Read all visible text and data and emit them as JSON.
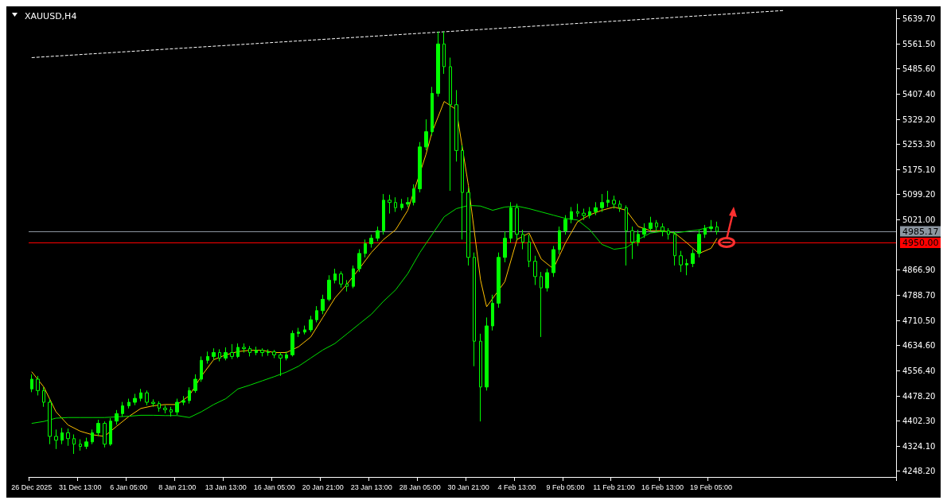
{
  "chart_data": {
    "type": "candlestick",
    "title": "XAUUSD,H4",
    "color": "#00ff00",
    "categories": [
      "26 Dec 2025",
      null,
      null,
      null,
      null,
      null,
      null,
      null,
      "31 Dec 13:00",
      null,
      null,
      null,
      null,
      null,
      null,
      null,
      "6 Jan 05:00",
      null,
      null,
      null,
      null,
      null,
      null,
      null,
      "8 Jan 21:00",
      null,
      null,
      null,
      null,
      null,
      null,
      null,
      "13 Jan 13:00",
      null,
      null,
      null,
      null,
      null,
      null,
      null,
      "16 Jan 05:00",
      null,
      null,
      null,
      null,
      null,
      null,
      null,
      "20 Jan 21:00",
      null,
      null,
      null,
      null,
      null,
      null,
      null,
      "23 Jan 13:00",
      null,
      null,
      null,
      null,
      null,
      null,
      null,
      "28 Jan 05:00",
      null,
      null,
      null,
      null,
      null,
      null,
      null,
      "30 Jan 21:00",
      null,
      null,
      null,
      null,
      null,
      null,
      null,
      "4 Feb 13:00",
      null,
      null,
      null,
      null,
      null,
      null,
      null,
      "9 Feb 05:00",
      null,
      null,
      null,
      null,
      null,
      null,
      null,
      "11 Feb 21:00",
      null,
      null,
      null,
      null,
      null,
      null,
      null,
      "16 Feb 13:00",
      null,
      null,
      null,
      null,
      null,
      null,
      null,
      "19 Feb 05:00",
      null,
      null,
      null,
      null,
      null,
      null,
      null,
      null,
      null,
      null,
      null,
      null,
      null,
      null,
      null,
      null,
      null,
      null,
      null,
      null,
      null,
      null,
      null,
      null,
      null,
      null,
      null,
      null,
      null,
      null
    ],
    "ohlc": [
      [
        4500,
        4545,
        4490,
        4530
      ],
      [
        4530,
        4540,
        4480,
        4495
      ],
      [
        4495,
        4505,
        4445,
        4459
      ],
      [
        4459,
        4470,
        4330,
        4354
      ],
      [
        4354,
        4375,
        4315,
        4342
      ],
      [
        4342,
        4380,
        4330,
        4365
      ],
      [
        4365,
        4378,
        4325,
        4347
      ],
      [
        4347,
        4360,
        4300,
        4330
      ],
      [
        4330,
        4345,
        4310,
        4323
      ],
      [
        4323,
        4350,
        4315,
        4337
      ],
      [
        4337,
        4375,
        4330,
        4365
      ],
      [
        4365,
        4405,
        4355,
        4394
      ],
      [
        4394,
        4400,
        4320,
        4330
      ],
      [
        4330,
        4410,
        4325,
        4401
      ],
      [
        4401,
        4435,
        4390,
        4424
      ],
      [
        4424,
        4460,
        4415,
        4448
      ],
      [
        4448,
        4470,
        4440,
        4459
      ],
      [
        4459,
        4485,
        4450,
        4471
      ],
      [
        4471,
        4500,
        4462,
        4488
      ],
      [
        4488,
        4495,
        4450,
        4459
      ],
      [
        4459,
        4468,
        4445,
        4455
      ],
      [
        4455,
        4462,
        4430,
        4441
      ],
      [
        4441,
        4450,
        4425,
        4436
      ],
      [
        4436,
        4445,
        4415,
        4429
      ],
      [
        4429,
        4470,
        4420,
        4459
      ],
      [
        4459,
        4478,
        4450,
        4464
      ],
      [
        4464,
        4505,
        4455,
        4495
      ],
      [
        4495,
        4545,
        4488,
        4530
      ],
      [
        4530,
        4600,
        4522,
        4588
      ],
      [
        4588,
        4615,
        4578,
        4600
      ],
      [
        4600,
        4625,
        4590,
        4612
      ],
      [
        4612,
        4622,
        4585,
        4595
      ],
      [
        4595,
        4628,
        4588,
        4612
      ],
      [
        4612,
        4638,
        4592,
        4600
      ],
      [
        4600,
        4640,
        4595,
        4628
      ],
      [
        4628,
        4640,
        4612,
        4624
      ],
      [
        4624,
        4632,
        4600,
        4612
      ],
      [
        4612,
        4630,
        4604,
        4619
      ],
      [
        4619,
        4625,
        4600,
        4612
      ],
      [
        4612,
        4622,
        4602,
        4614
      ],
      [
        4614,
        4620,
        4595,
        4605
      ],
      [
        4605,
        4612,
        4540,
        4595
      ],
      [
        4595,
        4615,
        4588,
        4605
      ],
      [
        4605,
        4680,
        4600,
        4671
      ],
      [
        4671,
        4688,
        4660,
        4675
      ],
      [
        4675,
        4695,
        4668,
        4682
      ],
      [
        4682,
        4725,
        4675,
        4713
      ],
      [
        4713,
        4755,
        4705,
        4741
      ],
      [
        4741,
        4790,
        4730,
        4776
      ],
      [
        4776,
        4850,
        4770,
        4835
      ],
      [
        4835,
        4870,
        4825,
        4854
      ],
      [
        4854,
        4862,
        4812,
        4823
      ],
      [
        4823,
        4835,
        4800,
        4816
      ],
      [
        4816,
        4880,
        4810,
        4870
      ],
      [
        4870,
        4930,
        4860,
        4917
      ],
      [
        4917,
        4960,
        4905,
        4947
      ],
      [
        4947,
        4975,
        4935,
        4964
      ],
      [
        4964,
        5000,
        4955,
        4987
      ],
      [
        4987,
        5100,
        4975,
        5081
      ],
      [
        5081,
        5098,
        5040,
        5074
      ],
      [
        5074,
        5090,
        5045,
        5058
      ],
      [
        5058,
        5085,
        5050,
        5069
      ],
      [
        5069,
        5090,
        5060,
        5074
      ],
      [
        5074,
        5130,
        5065,
        5116
      ],
      [
        5116,
        5260,
        5105,
        5245
      ],
      [
        5245,
        5330,
        5235,
        5292
      ],
      [
        5292,
        5430,
        5280,
        5410
      ],
      [
        5410,
        5600,
        5400,
        5562
      ],
      [
        5562,
        5600,
        5470,
        5492
      ],
      [
        5492,
        5520,
        5110,
        5375
      ],
      [
        5375,
        5420,
        5200,
        5234
      ],
      [
        5234,
        5250,
        4960,
        5105
      ],
      [
        5105,
        5120,
        4880,
        4905
      ],
      [
        4905,
        4920,
        4570,
        4647
      ],
      [
        4647,
        4670,
        4400,
        4506
      ],
      [
        4506,
        4720,
        4495,
        4694
      ],
      [
        4694,
        4790,
        4680,
        4764
      ],
      [
        4764,
        4920,
        4750,
        4905
      ],
      [
        4905,
        4985,
        4890,
        4964
      ],
      [
        4964,
        5075,
        4950,
        5058
      ],
      [
        5058,
        5070,
        4960,
        4976
      ],
      [
        4976,
        4990,
        4930,
        4952
      ],
      [
        4952,
        4975,
        4875,
        4893
      ],
      [
        4893,
        4910,
        4820,
        4846
      ],
      [
        4846,
        4860,
        4660,
        4811
      ],
      [
        4811,
        4870,
        4800,
        4858
      ],
      [
        4858,
        4940,
        4845,
        4929
      ],
      [
        4929,
        5000,
        4915,
        4987
      ],
      [
        4987,
        5035,
        4975,
        5022
      ],
      [
        5022,
        5060,
        5010,
        5046
      ],
      [
        5046,
        5070,
        5030,
        5041
      ],
      [
        5041,
        5055,
        5020,
        5034
      ],
      [
        5034,
        5060,
        5025,
        5046
      ],
      [
        5046,
        5075,
        5035,
        5058
      ],
      [
        5058,
        5100,
        5045,
        5074
      ],
      [
        5074,
        5110,
        5060,
        5081
      ],
      [
        5081,
        5095,
        5055,
        5069
      ],
      [
        5069,
        5080,
        5045,
        5058
      ],
      [
        5058,
        5065,
        4880,
        4987
      ],
      [
        4987,
        5000,
        4900,
        4952
      ],
      [
        4952,
        4990,
        4940,
        4976
      ],
      [
        4976,
        5010,
        4965,
        4994
      ],
      [
        4994,
        5030,
        4985,
        5011
      ],
      [
        5011,
        5020,
        4985,
        4999
      ],
      [
        4999,
        5010,
        4970,
        4987
      ],
      [
        4987,
        4995,
        4960,
        4976
      ],
      [
        4976,
        4985,
        4880,
        4910
      ],
      [
        4910,
        4925,
        4860,
        4882
      ],
      [
        4882,
        4900,
        4850,
        4886
      ],
      [
        4886,
        4930,
        4875,
        4917
      ],
      [
        4917,
        4990,
        4905,
        4976
      ],
      [
        4976,
        5005,
        4965,
        4994
      ],
      [
        4994,
        5020,
        4985,
        4999
      ],
      [
        4999,
        5015,
        4975,
        4985
      ],
      null,
      null,
      null,
      null,
      null,
      null,
      null,
      null,
      null,
      null,
      null,
      null,
      null,
      null,
      null,
      null,
      null,
      null,
      null,
      null,
      null,
      null,
      null,
      null,
      null,
      null,
      null,
      null,
      null
    ],
    "series": [
      {
        "type": "line",
        "color": "#ffc000",
        "values": [
          4553,
          null,
          4506,
          null,
          4430,
          null,
          4389,
          null,
          4370,
          null,
          4359,
          null,
          4354,
          null,
          4385,
          null,
          4415,
          null,
          4440,
          null,
          4448,
          null,
          4452,
          null,
          4452,
          null,
          4480,
          null,
          4540,
          null,
          4590,
          null,
          4605,
          null,
          4615,
          null,
          4619,
          null,
          4619,
          null,
          4612,
          null,
          4612,
          null,
          4630,
          null,
          4660,
          null,
          4720,
          null,
          4780,
          null,
          4823,
          null,
          4870,
          null,
          4920,
          null,
          4960,
          null,
          4990,
          null,
          5050,
          null,
          null,
          5222,
          5290,
          null,
          5385,
          null,
          5360,
          null,
          5126,
          null,
          4835,
          4753,
          null,
          null,
          4830,
          null,
          4960,
          null,
          4980,
          null,
          4900,
          null,
          4870,
          null,
          4950,
          null,
          5015,
          null,
          5036,
          null,
          5050,
          null,
          5060,
          null,
          5050,
          null,
          5000,
          null,
          4987,
          null,
          4987,
          null,
          4980,
          null,
          4950,
          null,
          4917,
          null,
          4933,
          4964,
          null,
          null,
          null,
          null,
          null,
          null,
          null,
          null,
          null,
          null,
          null,
          null,
          null,
          null,
          null,
          null,
          null,
          null,
          null,
          null,
          null,
          null,
          null,
          null,
          null,
          null,
          null,
          null,
          null
        ]
      },
      {
        "type": "line",
        "color": "#00e000",
        "values": [
          4394,
          null,
          4400,
          null,
          4410,
          null,
          4412,
          null,
          4412,
          null,
          4412,
          null,
          4412,
          null,
          4414,
          null,
          4416,
          null,
          4419,
          null,
          4419,
          null,
          4418,
          null,
          4418,
          null,
          4412,
          null,
          4430,
          null,
          4452,
          null,
          4470,
          null,
          4500,
          null,
          4512,
          null,
          4525,
          null,
          4538,
          null,
          4552,
          null,
          4570,
          null,
          4595,
          null,
          4620,
          null,
          4640,
          null,
          4670,
          null,
          4700,
          null,
          4730,
          null,
          4770,
          null,
          4805,
          null,
          4855,
          null,
          4920,
          null,
          4975,
          null,
          5030,
          null,
          5055,
          null,
          5065,
          null,
          5063,
          null,
          5050,
          null,
          5060,
          null,
          5063,
          null,
          5055,
          null,
          5045,
          null,
          5035,
          null,
          5025,
          null,
          5020,
          null,
          4990,
          null,
          4945,
          null,
          4930,
          null,
          4935,
          null,
          4960,
          null,
          4980,
          null,
          4985,
          null,
          4980,
          null,
          4985,
          null,
          4990,
          null,
          4999,
          null,
          null,
          null,
          null,
          null,
          null,
          null,
          null,
          null,
          null,
          null,
          null,
          null,
          null,
          null,
          null,
          null,
          null,
          null,
          null,
          null,
          null,
          null,
          null,
          null,
          null,
          null,
          null,
          null,
          null
        ]
      },
      {
        "type": "line",
        "color": "#ffffff",
        "line_style": "dashed",
        "values": [
          5520,
          null,
          null,
          null,
          null,
          null,
          null,
          null,
          null,
          null,
          null,
          null,
          null,
          null,
          null,
          null,
          null,
          null,
          null,
          null,
          null,
          null,
          null,
          null,
          null,
          null,
          null,
          null,
          null,
          null,
          null,
          null,
          null,
          null,
          null,
          null,
          null,
          null,
          null,
          null,
          null,
          null,
          null,
          null,
          null,
          null,
          null,
          null,
          null,
          null,
          null,
          null,
          null,
          null,
          null,
          null,
          null,
          null,
          null,
          null,
          null,
          null,
          null,
          null,
          null,
          null,
          null,
          null,
          null,
          null,
          null,
          null,
          null,
          null,
          null,
          null,
          null,
          null,
          null,
          null,
          null,
          null,
          null,
          null,
          null,
          null,
          null,
          null,
          null,
          null,
          null,
          null,
          null,
          null,
          null,
          null,
          null,
          null,
          null,
          null,
          null,
          null,
          null,
          null,
          null,
          null,
          null,
          null,
          null,
          null,
          null,
          null,
          null,
          null,
          null,
          null,
          null,
          null,
          null,
          null,
          null,
          null,
          null,
          null,
          5665,
          null,
          null,
          null,
          null,
          null,
          null,
          null,
          null,
          null,
          null,
          null,
          null,
          null,
          null,
          null,
          null,
          null,
          null
        ]
      }
    ],
    "ylim": [
      4229,
      5668
    ],
    "yticks": [
      {
        "value": 5639.7,
        "label": "5639.70"
      },
      {
        "value": 5561.5,
        "label": "5561.50"
      },
      {
        "value": 5485.6,
        "label": "5485.60"
      },
      {
        "value": 5407.4,
        "label": "5407.40"
      },
      {
        "value": 5329.2,
        "label": "5329.20"
      },
      {
        "value": 5253.3,
        "label": "5253.30"
      },
      {
        "value": 5175.1,
        "label": "5175.10"
      },
      {
        "value": 5099.2,
        "label": "5099.20"
      },
      {
        "value": 5021,
        "label": "5021.00"
      },
      {
        "value": 4866.9,
        "label": "4866.90"
      },
      {
        "value": 4788.7,
        "label": "4788.70"
      },
      {
        "value": 4710.5,
        "label": "4710.50"
      },
      {
        "value": 4634.6,
        "label": "4634.60"
      },
      {
        "value": 4556.4,
        "label": "4556.40"
      },
      {
        "value": 4478.2,
        "label": "4478.20"
      },
      {
        "value": 4402.3,
        "label": "4402.30"
      },
      {
        "value": 4324.1,
        "label": "4324.10"
      },
      {
        "value": 4248.2,
        "label": "4248.20"
      }
    ],
    "ref_lines": [
      {
        "axis": "y",
        "value": 4985.17,
        "label": "4985.17",
        "color": "#8c96a0"
      },
      {
        "axis": "y",
        "value": 4950.0,
        "label": "4950.00",
        "color": "#ff0000"
      }
    ],
    "marker": "none"
  }
}
